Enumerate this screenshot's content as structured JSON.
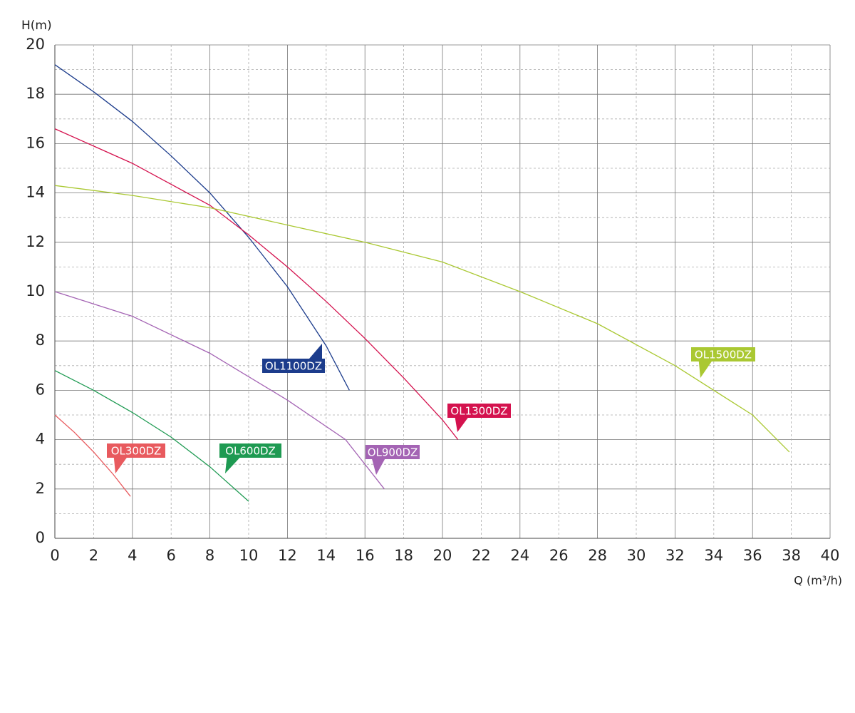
{
  "chart_data": {
    "type": "line",
    "y_label": "H(m)",
    "x_label": "Q (m³/h)",
    "xlim": [
      0,
      40
    ],
    "xticks": [
      0,
      2,
      4,
      6,
      8,
      10,
      12,
      14,
      16,
      18,
      20,
      22,
      24,
      26,
      28,
      30,
      32,
      34,
      36,
      38,
      40
    ],
    "ylim": [
      0,
      20
    ],
    "yticks": [
      0,
      2,
      4,
      6,
      8,
      10,
      12,
      14,
      16,
      18,
      20
    ],
    "grid": true,
    "series": [
      {
        "name": "OL300DZ",
        "color": "#e85a5e",
        "x": [
          0,
          1,
          2,
          3,
          3.9
        ],
        "values": [
          5.0,
          4.3,
          3.5,
          2.6,
          1.7
        ]
      },
      {
        "name": "OL600DZ",
        "color": "#1e9a52",
        "x": [
          0,
          2,
          4,
          6,
          8,
          10
        ],
        "values": [
          6.8,
          6.0,
          5.1,
          4.1,
          2.9,
          1.5
        ]
      },
      {
        "name": "OL900DZ",
        "color": "#a464b4",
        "x": [
          0,
          4,
          8,
          12,
          15,
          17
        ],
        "values": [
          10.0,
          9.0,
          7.5,
          5.6,
          4.0,
          2.0
        ]
      },
      {
        "name": "OL1100DZ",
        "color": "#1c3c8c",
        "x": [
          0,
          2,
          4,
          6,
          8,
          10,
          12,
          14,
          15.2
        ],
        "values": [
          19.2,
          18.1,
          16.9,
          15.5,
          14.0,
          12.2,
          10.2,
          7.8,
          6.0
        ]
      },
      {
        "name": "OL1300DZ",
        "color": "#d4124e",
        "x": [
          0,
          4,
          8,
          10,
          12,
          14,
          16,
          18,
          20,
          20.8
        ],
        "values": [
          16.6,
          15.2,
          13.5,
          12.3,
          11.0,
          9.6,
          8.1,
          6.5,
          4.8,
          4.0
        ]
      },
      {
        "name": "OL1500DZ",
        "color": "#aac832",
        "x": [
          0,
          4,
          8,
          12,
          16,
          20,
          24,
          28,
          32,
          36,
          37.9
        ],
        "values": [
          14.3,
          13.9,
          13.4,
          12.7,
          12.0,
          11.2,
          10.0,
          8.7,
          7.0,
          5.0,
          3.5
        ]
      }
    ]
  }
}
